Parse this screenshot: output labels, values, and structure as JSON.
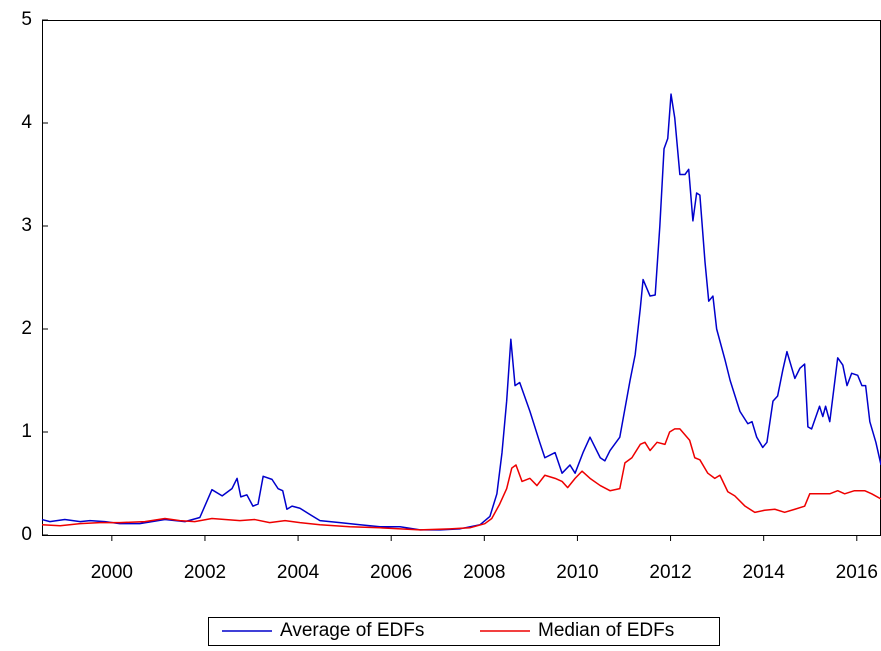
{
  "chart_data": {
    "type": "line",
    "xlim": [
      1998.5,
      2016.52
    ],
    "xticks": [
      2000,
      2002,
      2004,
      2006,
      2008,
      2010,
      2012,
      2014,
      2016
    ],
    "ylim": [
      0,
      5
    ],
    "yticks": [
      0,
      1,
      2,
      3,
      4,
      5
    ],
    "grid": false,
    "legend": "bottom",
    "series": [
      {
        "name": "Average of EDFs",
        "color": "#0000cc",
        "x": [
          1998.5,
          1998.67,
          1998.99,
          1999.32,
          1999.53,
          1999.85,
          2000.17,
          2000.6,
          2001.14,
          2001.57,
          2001.89,
          2002.15,
          2002.37,
          2002.58,
          2002.69,
          2002.77,
          2002.9,
          2003.03,
          2003.14,
          2003.25,
          2003.44,
          2003.57,
          2003.67,
          2003.76,
          2003.87,
          2004.04,
          2004.25,
          2004.47,
          2004.9,
          2005.33,
          2005.76,
          2006.19,
          2006.62,
          2007.05,
          2007.48,
          2007.91,
          2008.12,
          2008.27,
          2008.38,
          2008.48,
          2008.57,
          2008.66,
          2008.76,
          2008.98,
          2009.19,
          2009.3,
          2009.52,
          2009.67,
          2009.84,
          2009.95,
          2010.12,
          2010.27,
          2010.49,
          2010.59,
          2010.7,
          2010.91,
          2011.13,
          2011.24,
          2011.35,
          2011.41,
          2011.56,
          2011.67,
          2011.77,
          2011.86,
          2011.94,
          2012.01,
          2012.09,
          2012.2,
          2012.31,
          2012.39,
          2012.48,
          2012.56,
          2012.63,
          2012.74,
          2012.82,
          2012.91,
          2012.99,
          2013.17,
          2013.28,
          2013.49,
          2013.66,
          2013.75,
          2013.85,
          2013.98,
          2014.07,
          2014.2,
          2014.3,
          2014.41,
          2014.5,
          2014.67,
          2014.78,
          2014.88,
          2014.95,
          2015.03,
          2015.2,
          2015.27,
          2015.33,
          2015.42,
          2015.59,
          2015.7,
          2015.79,
          2015.89,
          2016.02,
          2016.11,
          2016.19,
          2016.28,
          2016.41,
          2016.52
        ],
        "values": [
          0.15,
          0.13,
          0.15,
          0.13,
          0.14,
          0.13,
          0.11,
          0.11,
          0.15,
          0.13,
          0.17,
          0.44,
          0.38,
          0.45,
          0.55,
          0.37,
          0.39,
          0.28,
          0.3,
          0.57,
          0.54,
          0.45,
          0.43,
          0.25,
          0.28,
          0.26,
          0.2,
          0.14,
          0.12,
          0.1,
          0.08,
          0.08,
          0.05,
          0.05,
          0.06,
          0.1,
          0.18,
          0.4,
          0.8,
          1.3,
          1.9,
          1.45,
          1.48,
          1.2,
          0.9,
          0.75,
          0.8,
          0.6,
          0.68,
          0.6,
          0.8,
          0.95,
          0.75,
          0.72,
          0.82,
          0.95,
          1.5,
          1.75,
          2.2,
          2.48,
          2.32,
          2.33,
          3.0,
          3.75,
          3.85,
          4.28,
          4.05,
          3.5,
          3.5,
          3.55,
          3.05,
          3.32,
          3.3,
          2.65,
          2.27,
          2.32,
          2.0,
          1.7,
          1.5,
          1.2,
          1.08,
          1.1,
          0.95,
          0.85,
          0.9,
          1.3,
          1.35,
          1.6,
          1.78,
          1.52,
          1.62,
          1.66,
          1.05,
          1.03,
          1.25,
          1.15,
          1.25,
          1.1,
          1.72,
          1.65,
          1.45,
          1.57,
          1.55,
          1.45,
          1.45,
          1.1,
          0.9,
          0.68
        ]
      },
      {
        "name": "Median of EDFs",
        "color": "#ee0000",
        "x": [
          1998.5,
          1998.89,
          1999.32,
          1999.74,
          2000.17,
          2000.71,
          2001.14,
          2001.46,
          2001.78,
          2002.15,
          2002.43,
          2002.75,
          2003.07,
          2003.39,
          2003.72,
          2004.04,
          2004.47,
          2005.11,
          2005.76,
          2006.62,
          2007.26,
          2007.69,
          2008.01,
          2008.16,
          2008.33,
          2008.48,
          2008.59,
          2008.68,
          2008.81,
          2008.98,
          2009.13,
          2009.3,
          2009.52,
          2009.67,
          2009.79,
          2009.95,
          2010.1,
          2010.27,
          2010.49,
          2010.7,
          2010.91,
          2011.02,
          2011.17,
          2011.35,
          2011.45,
          2011.56,
          2011.71,
          2011.88,
          2011.98,
          2012.09,
          2012.2,
          2012.41,
          2012.52,
          2012.63,
          2012.8,
          2012.95,
          2013.06,
          2013.23,
          2013.38,
          2013.6,
          2013.81,
          2014.02,
          2014.24,
          2014.45,
          2014.67,
          2014.88,
          2014.99,
          2015.2,
          2015.42,
          2015.59,
          2015.74,
          2015.95,
          2016.17,
          2016.32,
          2016.52
        ],
        "values": [
          0.1,
          0.09,
          0.11,
          0.12,
          0.12,
          0.13,
          0.16,
          0.14,
          0.13,
          0.16,
          0.15,
          0.14,
          0.15,
          0.12,
          0.14,
          0.12,
          0.1,
          0.08,
          0.07,
          0.05,
          0.06,
          0.07,
          0.11,
          0.16,
          0.3,
          0.45,
          0.65,
          0.68,
          0.52,
          0.55,
          0.48,
          0.58,
          0.55,
          0.52,
          0.46,
          0.55,
          0.62,
          0.55,
          0.48,
          0.43,
          0.45,
          0.7,
          0.75,
          0.88,
          0.9,
          0.82,
          0.9,
          0.88,
          1.0,
          1.03,
          1.03,
          0.92,
          0.75,
          0.73,
          0.6,
          0.55,
          0.58,
          0.42,
          0.38,
          0.28,
          0.22,
          0.24,
          0.25,
          0.22,
          0.25,
          0.28,
          0.4,
          0.4,
          0.4,
          0.43,
          0.4,
          0.43,
          0.43,
          0.4,
          0.35
        ]
      }
    ]
  }
}
